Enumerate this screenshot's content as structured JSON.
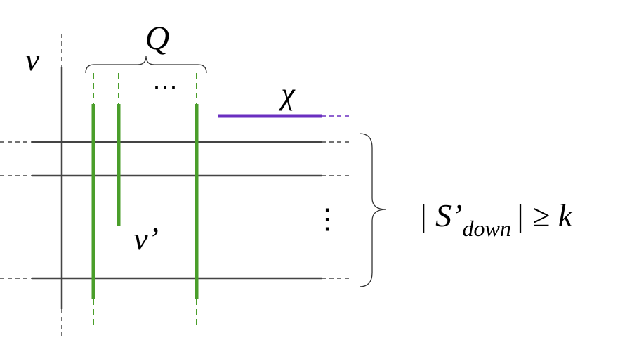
{
  "labels": {
    "q": "Q",
    "v": "ν",
    "chi": "χ",
    "v_prime": "ν’",
    "hdots": "⋯",
    "vdots": "⋮"
  },
  "formula": {
    "open": "| S’",
    "subscript": "down",
    "close": "| ≥ k"
  }
}
